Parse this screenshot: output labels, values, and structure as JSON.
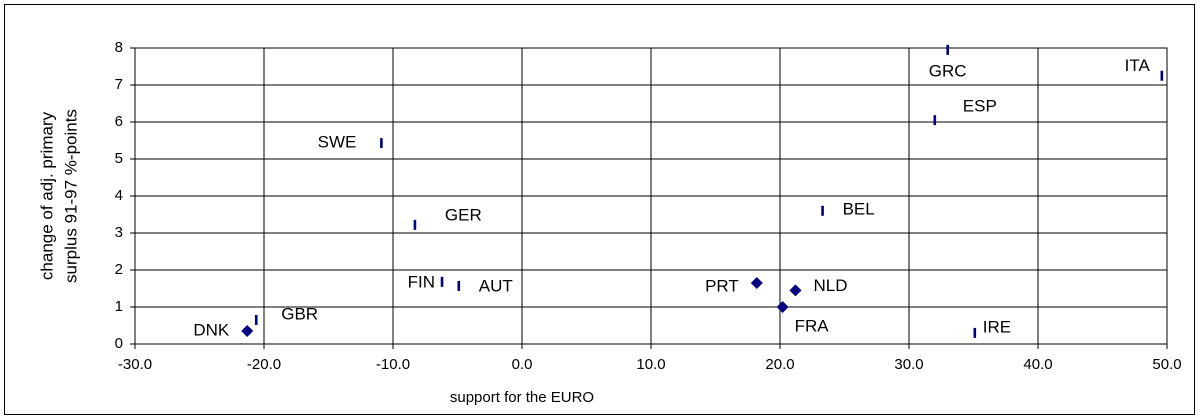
{
  "chart_data": {
    "type": "scatter",
    "x_label": "support for the EURO",
    "y_label": [
      "change of adj. primary",
      "surplus 91-97 %-points"
    ],
    "color": "#000080",
    "grid": true,
    "xlim": [
      -30,
      50
    ],
    "xticks": [
      {
        "value": -30,
        "label": "-30.0"
      },
      {
        "value": -20,
        "label": "-20.0"
      },
      {
        "value": -10,
        "label": "-10.0"
      },
      {
        "value": 0,
        "label": "0.0"
      },
      {
        "value": 10,
        "label": "10.0"
      },
      {
        "value": 20,
        "label": "20.0"
      },
      {
        "value": 30,
        "label": "30.0"
      },
      {
        "value": 40,
        "label": "40.0"
      },
      {
        "value": 50,
        "label": "50.0"
      }
    ],
    "ylim": [
      0,
      8
    ],
    "yticks": [
      0,
      1,
      2,
      3,
      4,
      5,
      6,
      7,
      8
    ],
    "labels": [
      "SWE",
      "GER",
      "FIN",
      "AUT",
      "DNK",
      "GBR",
      "PRT",
      "NLD",
      "FRA",
      "BEL",
      "ESP",
      "GRC",
      "ITA",
      "IRE"
    ],
    "x": [
      -10.9,
      -8.3,
      -6.2,
      -4.9,
      -21.3,
      -20.6,
      18.2,
      21.2,
      20.2,
      23.3,
      32.0,
      33.0,
      49.6,
      35.1
    ],
    "y": [
      5.43,
      3.22,
      1.68,
      1.57,
      0.35,
      0.65,
      1.65,
      1.45,
      1.0,
      3.6,
      6.05,
      7.95,
      7.25,
      0.3
    ],
    "markers": [
      "dash",
      "dash",
      "dash",
      "dash",
      "diamond",
      "dash",
      "diamond",
      "diamond",
      "diamond",
      "dash",
      "dash",
      "dash",
      "dash",
      "dash"
    ]
  }
}
